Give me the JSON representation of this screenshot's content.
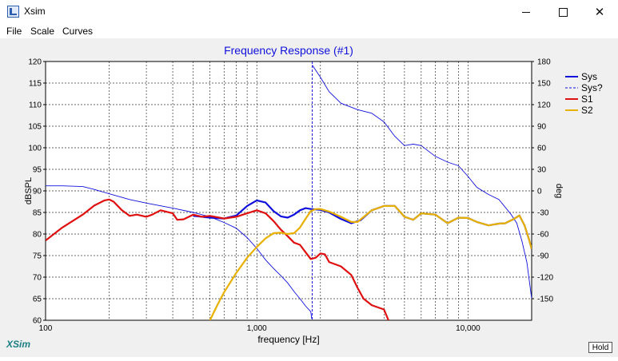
{
  "window": {
    "title": "Xsim",
    "minimize": "–",
    "maximize": "□",
    "close": "✕"
  },
  "menu": {
    "items": [
      "File",
      "Scale",
      "Curves"
    ]
  },
  "status": {
    "label": "XSim"
  },
  "hold_button": {
    "label": "Hold"
  },
  "icons": {
    "app": "xsim-app-icon",
    "minimize": "minimize-icon",
    "maximize": "maximize-icon",
    "close": "close-icon"
  },
  "chart_data": {
    "type": "line",
    "title": "Frequency Response (#1)",
    "xlabel": "frequency [Hz]",
    "ylabel": "dBSPL",
    "y2label": "deg",
    "xscale": "log",
    "xlim": [
      100,
      20000
    ],
    "ylim": [
      60,
      120
    ],
    "y2lim": [
      -180,
      180
    ],
    "grid": true,
    "legend_position": "right",
    "xticks": [
      {
        "value": 100,
        "label": "100"
      },
      {
        "value": 1000,
        "label": "1,000"
      },
      {
        "value": 10000,
        "label": "10,000"
      }
    ],
    "yticks": [
      60,
      65,
      70,
      75,
      80,
      85,
      90,
      95,
      100,
      105,
      110,
      115,
      120
    ],
    "y2ticks": [
      -150,
      -120,
      -90,
      -60,
      -30,
      0,
      30,
      60,
      90,
      120,
      150,
      180
    ],
    "series": [
      {
        "name": "Sys",
        "color": "#1010dd",
        "style": "solid",
        "width": 2.2,
        "axis": "left",
        "points": [
          [
            500,
            84.2
          ],
          [
            600,
            83.8
          ],
          [
            700,
            83.6
          ],
          [
            800,
            84.3
          ],
          [
            900,
            86.5
          ],
          [
            1000,
            87.8
          ],
          [
            1100,
            87.3
          ],
          [
            1200,
            85.3
          ],
          [
            1300,
            84.1
          ],
          [
            1400,
            83.8
          ],
          [
            1500,
            84.5
          ],
          [
            1600,
            85.5
          ],
          [
            1700,
            86.0
          ],
          [
            1800,
            85.8
          ],
          [
            2000,
            85.6
          ],
          [
            2200,
            85.0
          ],
          [
            2500,
            83.5
          ],
          [
            2800,
            82.5
          ],
          [
            3100,
            83.2
          ],
          [
            3500,
            85.5
          ],
          [
            4000,
            86.5
          ],
          [
            4500,
            86.5
          ],
          [
            5000,
            84.0
          ],
          [
            5500,
            83.3
          ],
          [
            6000,
            84.8
          ],
          [
            7000,
            84.5
          ],
          [
            8000,
            82.5
          ],
          [
            9000,
            83.8
          ],
          [
            10000,
            83.7
          ],
          [
            11000,
            82.8
          ],
          [
            12500,
            82.0
          ],
          [
            14000,
            82.4
          ],
          [
            15000,
            82.5
          ],
          [
            16500,
            83.5
          ],
          [
            17500,
            84.3
          ],
          [
            18500,
            82.0
          ],
          [
            19500,
            78.5
          ],
          [
            20000,
            76.5
          ]
        ]
      },
      {
        "name": "Sys?",
        "color": "#1010dd",
        "style": "dashed-phase",
        "width": 0.9,
        "axis": "right",
        "points": [
          [
            100,
            7
          ],
          [
            120,
            7
          ],
          [
            150,
            6
          ],
          [
            170,
            2
          ],
          [
            200,
            -4
          ],
          [
            250,
            -12
          ],
          [
            300,
            -17
          ],
          [
            400,
            -24
          ],
          [
            500,
            -30
          ],
          [
            600,
            -36
          ],
          [
            700,
            -44
          ],
          [
            800,
            -52
          ],
          [
            900,
            -65
          ],
          [
            1000,
            -80
          ],
          [
            1100,
            -96
          ],
          [
            1200,
            -108
          ],
          [
            1300,
            -118
          ],
          [
            1400,
            -128
          ],
          [
            1500,
            -140
          ],
          [
            1600,
            -150
          ],
          [
            1700,
            -160
          ],
          [
            1800,
            -168
          ],
          [
            1820,
            -178
          ],
          [
            1830,
            175
          ],
          [
            2000,
            158
          ],
          [
            2200,
            138
          ],
          [
            2500,
            122
          ],
          [
            3000,
            113
          ],
          [
            3500,
            108
          ],
          [
            4000,
            96
          ],
          [
            4500,
            76
          ],
          [
            5000,
            63
          ],
          [
            5500,
            65
          ],
          [
            6000,
            63
          ],
          [
            7000,
            48
          ],
          [
            8000,
            40
          ],
          [
            9000,
            35
          ],
          [
            10000,
            20
          ],
          [
            11000,
            5
          ],
          [
            12500,
            -5
          ],
          [
            14000,
            -12
          ],
          [
            16000,
            -33
          ],
          [
            17000,
            -45
          ],
          [
            18000,
            -70
          ],
          [
            19000,
            -100
          ],
          [
            20000,
            -150
          ]
        ]
      },
      {
        "name": "S1",
        "color": "#e01010",
        "style": "solid",
        "width": 2.2,
        "axis": "left",
        "points": [
          [
            100,
            78.5
          ],
          [
            120,
            81.5
          ],
          [
            150,
            84.5
          ],
          [
            170,
            86.6
          ],
          [
            190,
            87.8
          ],
          [
            200,
            88.0
          ],
          [
            210,
            87.5
          ],
          [
            230,
            85.5
          ],
          [
            250,
            84.2
          ],
          [
            270,
            84.5
          ],
          [
            300,
            84.0
          ],
          [
            320,
            84.5
          ],
          [
            350,
            85.5
          ],
          [
            400,
            84.8
          ],
          [
            420,
            83.3
          ],
          [
            450,
            83.4
          ],
          [
            500,
            84.5
          ],
          [
            550,
            84.0
          ],
          [
            600,
            84.2
          ],
          [
            700,
            83.6
          ],
          [
            800,
            84.0
          ],
          [
            900,
            84.8
          ],
          [
            1000,
            85.5
          ],
          [
            1100,
            84.8
          ],
          [
            1200,
            83.0
          ],
          [
            1300,
            81.0
          ],
          [
            1400,
            79.5
          ],
          [
            1500,
            78.0
          ],
          [
            1600,
            77.5
          ],
          [
            1700,
            75.8
          ],
          [
            1800,
            74.2
          ],
          [
            1900,
            74.5
          ],
          [
            2000,
            75.5
          ],
          [
            2100,
            75.3
          ],
          [
            2200,
            73.5
          ],
          [
            2500,
            72.5
          ],
          [
            2800,
            70.5
          ],
          [
            3000,
            67.5
          ],
          [
            3200,
            65.0
          ],
          [
            3500,
            63.5
          ],
          [
            4000,
            62.5
          ],
          [
            4200,
            60.0
          ]
        ]
      },
      {
        "name": "S2",
        "color": "#e8b000",
        "style": "solid",
        "width": 2.2,
        "axis": "left",
        "points": [
          [
            600,
            60.0
          ],
          [
            650,
            63.5
          ],
          [
            700,
            66.5
          ],
          [
            800,
            71.0
          ],
          [
            900,
            74.5
          ],
          [
            1000,
            77.0
          ],
          [
            1100,
            79.0
          ],
          [
            1200,
            80.2
          ],
          [
            1300,
            80.3
          ],
          [
            1400,
            80.0
          ],
          [
            1500,
            80.2
          ],
          [
            1600,
            81.5
          ],
          [
            1700,
            83.5
          ],
          [
            1800,
            85.3
          ],
          [
            1900,
            85.8
          ],
          [
            2000,
            85.8
          ],
          [
            2200,
            85.2
          ],
          [
            2500,
            84.0
          ],
          [
            2800,
            82.8
          ],
          [
            3000,
            82.8
          ],
          [
            3500,
            85.5
          ],
          [
            4000,
            86.5
          ],
          [
            4500,
            86.5
          ],
          [
            5000,
            84.0
          ],
          [
            5500,
            83.3
          ],
          [
            6000,
            84.8
          ],
          [
            7000,
            84.5
          ],
          [
            8000,
            82.5
          ],
          [
            9000,
            83.8
          ],
          [
            10000,
            83.7
          ],
          [
            11000,
            82.8
          ],
          [
            12500,
            82.0
          ],
          [
            14000,
            82.4
          ],
          [
            15000,
            82.5
          ],
          [
            16500,
            83.5
          ],
          [
            17500,
            84.3
          ],
          [
            18500,
            82.0
          ],
          [
            19500,
            78.5
          ],
          [
            20000,
            76.5
          ]
        ]
      }
    ]
  }
}
